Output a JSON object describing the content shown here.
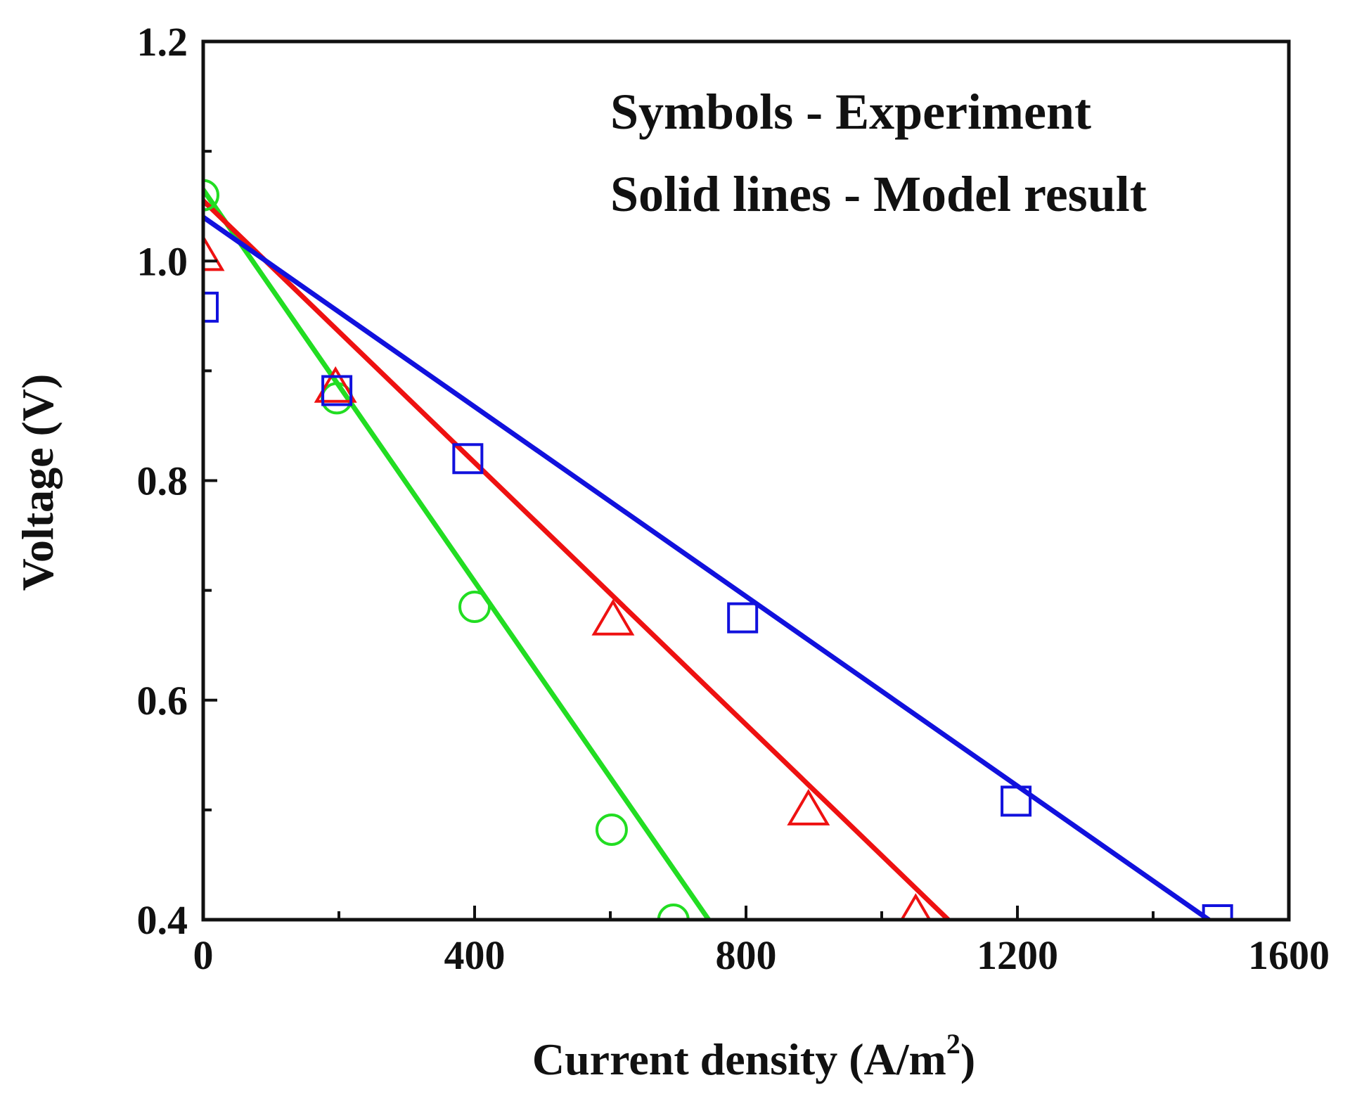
{
  "chart_data": {
    "type": "scatter",
    "title": "",
    "xlabel": "Current density (A/m",
    "xlabel_superscript": "2",
    "xlabel_close": ")",
    "ylabel": "Voltage (V)",
    "xlim": [
      0,
      1600
    ],
    "ylim": [
      0.4,
      1.2
    ],
    "x_ticks": [
      0,
      400,
      800,
      1200,
      1600
    ],
    "x_tick_labels": [
      "0",
      "400",
      "800",
      "1200",
      "1600"
    ],
    "x_minor_ticks": [
      200,
      600,
      1000,
      1400
    ],
    "y_ticks": [
      0.4,
      0.6,
      0.8,
      1.0,
      1.2
    ],
    "y_tick_labels": [
      "0.4",
      "0.6",
      "0.8",
      "1.0",
      "1.2"
    ],
    "y_minor_ticks": [
      0.5,
      0.7,
      0.9,
      1.1
    ],
    "grid": false,
    "annotations": [
      "Symbols - Experiment",
      "Solid lines - Model result"
    ],
    "series": [
      {
        "name": "green",
        "color": "#22dd22",
        "marker": "circle",
        "points_x": [
          0,
          197,
          400,
          602,
          693
        ],
        "points_y": [
          1.06,
          0.875,
          0.685,
          0.482,
          0.4
        ],
        "line_x": [
          0,
          745
        ],
        "line_y": [
          1.065,
          0.4
        ]
      },
      {
        "name": "red",
        "color": "#ee1111",
        "marker": "triangle",
        "points_x": [
          0,
          195,
          604,
          892,
          1050
        ],
        "points_y": [
          1.005,
          0.885,
          0.673,
          0.5,
          0.405
        ],
        "line_x": [
          0,
          1098
        ],
        "line_y": [
          1.055,
          0.4
        ]
      },
      {
        "name": "blue",
        "color": "#1111dd",
        "marker": "square",
        "points_x": [
          0,
          197,
          390,
          795,
          1198,
          1495
        ],
        "points_y": [
          0.958,
          0.882,
          0.82,
          0.675,
          0.508,
          0.4
        ],
        "line_x": [
          0,
          1482
        ],
        "line_y": [
          1.04,
          0.4
        ]
      }
    ]
  }
}
